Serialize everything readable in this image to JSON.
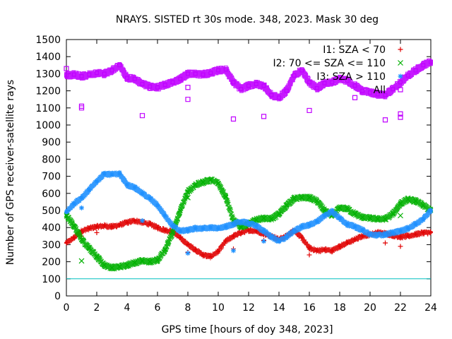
{
  "chart_data": {
    "type": "scatter",
    "title": "NRAYS. SISTED rt 30s mode. 348, 2023. Mask 30 deg",
    "xlabel": "GPS time [hours of doy 348, 2023]",
    "ylabel": "Number of GPS receiver-satellite rays",
    "xlim": [
      0,
      24
    ],
    "ylim": [
      0,
      1500
    ],
    "xticks": [
      0,
      2,
      4,
      6,
      8,
      10,
      12,
      14,
      16,
      18,
      20,
      22,
      24
    ],
    "yticks": [
      0,
      100,
      200,
      300,
      400,
      500,
      600,
      700,
      800,
      900,
      1000,
      1100,
      1200,
      1300,
      1400,
      1500
    ],
    "legend_position": "top-right",
    "reference_line": {
      "y": 100,
      "color": "#00c0c0"
    },
    "series": [
      {
        "name": "I1: SZA < 70",
        "marker": "+",
        "color": "#e00000",
        "x": [
          0,
          0.5,
          1,
          1.5,
          2,
          2.5,
          3,
          3.5,
          4,
          4.5,
          5,
          5.5,
          6,
          6.5,
          7,
          7.5,
          8,
          8.5,
          9,
          9.5,
          10,
          10.5,
          11,
          11.5,
          12,
          12.5,
          13,
          13.5,
          14,
          14.5,
          15,
          15.5,
          16,
          16.5,
          17,
          17.5,
          18,
          18.5,
          19,
          19.5,
          20,
          20.5,
          21,
          21.5,
          22,
          22.5,
          23,
          23.5,
          24
        ],
        "y": [
          310,
          340,
          380,
          395,
          405,
          410,
          405,
          415,
          430,
          440,
          430,
          420,
          400,
          385,
          375,
          340,
          300,
          270,
          240,
          230,
          260,
          320,
          350,
          370,
          385,
          380,
          365,
          350,
          330,
          350,
          385,
          340,
          280,
          265,
          270,
          265,
          290,
          310,
          330,
          350,
          360,
          370,
          365,
          355,
          345,
          350,
          360,
          370,
          370
        ],
        "outliers": [
          [
            1,
            350
          ],
          [
            2,
            370
          ],
          [
            8,
            255
          ],
          [
            11,
            275
          ],
          [
            13,
            325
          ],
          [
            16,
            240
          ],
          [
            21,
            310
          ],
          [
            22,
            290
          ]
        ]
      },
      {
        "name": "I2: 70 <= SZA <= 110",
        "marker": "x",
        "color": "#00b000",
        "x": [
          0,
          0.5,
          1,
          1.5,
          2,
          2.5,
          3,
          3.5,
          4,
          4.5,
          5,
          5.5,
          6,
          6.5,
          7,
          7.5,
          8,
          8.5,
          9,
          9.5,
          10,
          10.5,
          11,
          11.5,
          12,
          12.5,
          13,
          13.5,
          14,
          14.5,
          15,
          15.5,
          16,
          16.5,
          17,
          17.5,
          18,
          18.5,
          19,
          19.5,
          20,
          20.5,
          21,
          21.5,
          22,
          22.5,
          23,
          23.5,
          24
        ],
        "y": [
          470,
          410,
          330,
          280,
          230,
          180,
          165,
          170,
          180,
          195,
          205,
          200,
          210,
          270,
          370,
          500,
          610,
          650,
          665,
          680,
          660,
          580,
          440,
          405,
          420,
          445,
          455,
          450,
          480,
          530,
          570,
          575,
          575,
          555,
          500,
          470,
          515,
          510,
          480,
          460,
          455,
          450,
          450,
          480,
          540,
          565,
          555,
          530,
          500
        ],
        "outliers": [
          [
            1,
            205
          ],
          [
            8,
            575
          ],
          [
            11.5,
            400
          ],
          [
            22,
            470
          ]
        ]
      },
      {
        "name": "I3: SZA > 110",
        "marker": "*",
        "color": "#1e90ff",
        "x": [
          0,
          0.5,
          1,
          1.5,
          2,
          2.5,
          3,
          3.5,
          4,
          4.5,
          5,
          5.5,
          6,
          6.5,
          7,
          7.5,
          8,
          8.5,
          9,
          9.5,
          10,
          10.5,
          11,
          11.5,
          12,
          12.5,
          13,
          13.5,
          14,
          14.5,
          15,
          15.5,
          16,
          16.5,
          17,
          17.5,
          18,
          18.5,
          19,
          19.5,
          20,
          20.5,
          21,
          21.5,
          22,
          22.5,
          23,
          23.5,
          24
        ],
        "y": [
          490,
          540,
          575,
          620,
          670,
          715,
          710,
          715,
          650,
          635,
          600,
          570,
          530,
          470,
          410,
          380,
          385,
          395,
          395,
          400,
          395,
          405,
          420,
          435,
          425,
          410,
          380,
          345,
          320,
          345,
          380,
          405,
          415,
          435,
          470,
          495,
          455,
          420,
          405,
          385,
          360,
          355,
          360,
          370,
          380,
          395,
          420,
          450,
          500
        ],
        "outliers": [
          [
            1,
            515
          ],
          [
            5,
            440
          ],
          [
            8,
            250
          ],
          [
            11,
            265
          ],
          [
            13,
            320
          ]
        ]
      },
      {
        "name": "All",
        "marker": "square",
        "color": "#c000ff",
        "x": [
          0,
          0.5,
          1,
          1.5,
          2,
          2.5,
          3,
          3.5,
          4,
          4.5,
          5,
          5.5,
          6,
          6.5,
          7,
          7.5,
          8,
          8.5,
          9,
          9.5,
          10,
          10.5,
          11,
          11.5,
          12,
          12.5,
          13,
          13.5,
          14,
          14.5,
          15,
          15.5,
          16,
          16.5,
          17,
          17.5,
          18,
          18.5,
          19,
          19.5,
          20,
          20.5,
          21,
          21.5,
          22,
          22.5,
          23,
          23.5,
          24
        ],
        "y": [
          1290,
          1295,
          1285,
          1295,
          1305,
          1300,
          1320,
          1350,
          1275,
          1270,
          1240,
          1225,
          1220,
          1235,
          1250,
          1270,
          1300,
          1300,
          1295,
          1305,
          1320,
          1325,
          1250,
          1210,
          1230,
          1240,
          1230,
          1175,
          1160,
          1200,
          1290,
          1320,
          1250,
          1215,
          1245,
          1250,
          1270,
          1260,
          1230,
          1200,
          1190,
          1180,
          1175,
          1210,
          1250,
          1290,
          1320,
          1350,
          1370
        ],
        "outliers": [
          [
            0,
            1330
          ],
          [
            1,
            1100
          ],
          [
            1,
            1110
          ],
          [
            5,
            1055
          ],
          [
            8,
            1150
          ],
          [
            8,
            1220
          ],
          [
            11,
            1035
          ],
          [
            13,
            1050
          ],
          [
            16,
            1085
          ],
          [
            19,
            1160
          ],
          [
            21,
            1030
          ],
          [
            22,
            1045
          ],
          [
            22,
            1065
          ]
        ]
      }
    ]
  }
}
